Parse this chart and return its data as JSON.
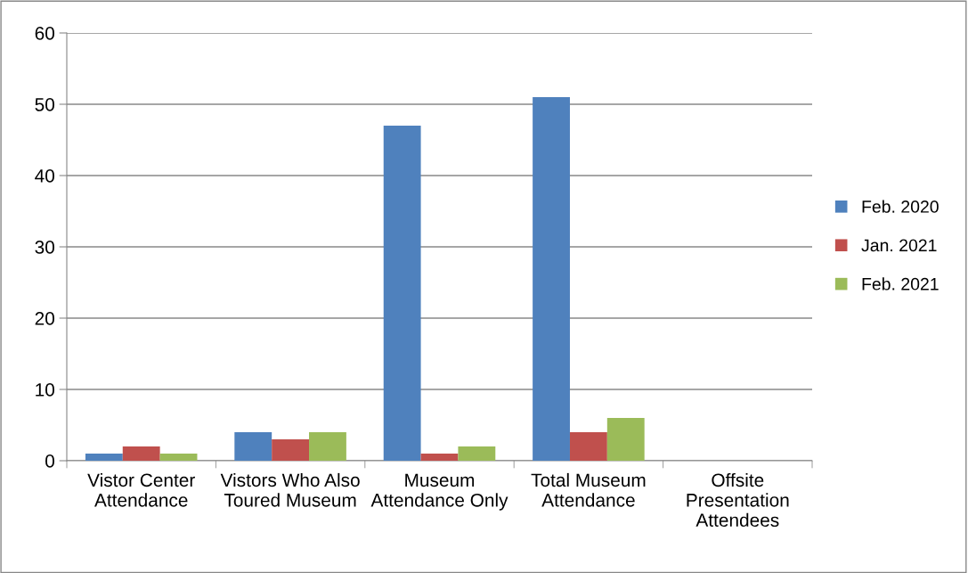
{
  "chart_data": {
    "type": "bar",
    "categories": [
      "Vistor Center Attendance",
      "Vistors Who Also Toured Museum",
      "Museum Attendance Only",
      "Total Museum Attendance",
      "Offsite Presentation Attendees"
    ],
    "series": [
      {
        "name": "Feb. 2020",
        "color": "#4f81bd",
        "values": [
          1,
          4,
          47,
          51,
          0
        ]
      },
      {
        "name": "Jan. 2021",
        "color": "#c0504d",
        "values": [
          2,
          3,
          1,
          4,
          0
        ]
      },
      {
        "name": "Feb. 2021",
        "color": "#9bbb59",
        "values": [
          1,
          4,
          2,
          6,
          0
        ]
      }
    ],
    "ylim": [
      0,
      60
    ],
    "yticks": [
      0,
      10,
      20,
      30,
      40,
      50,
      60
    ],
    "grid": "y",
    "legend": "right"
  }
}
